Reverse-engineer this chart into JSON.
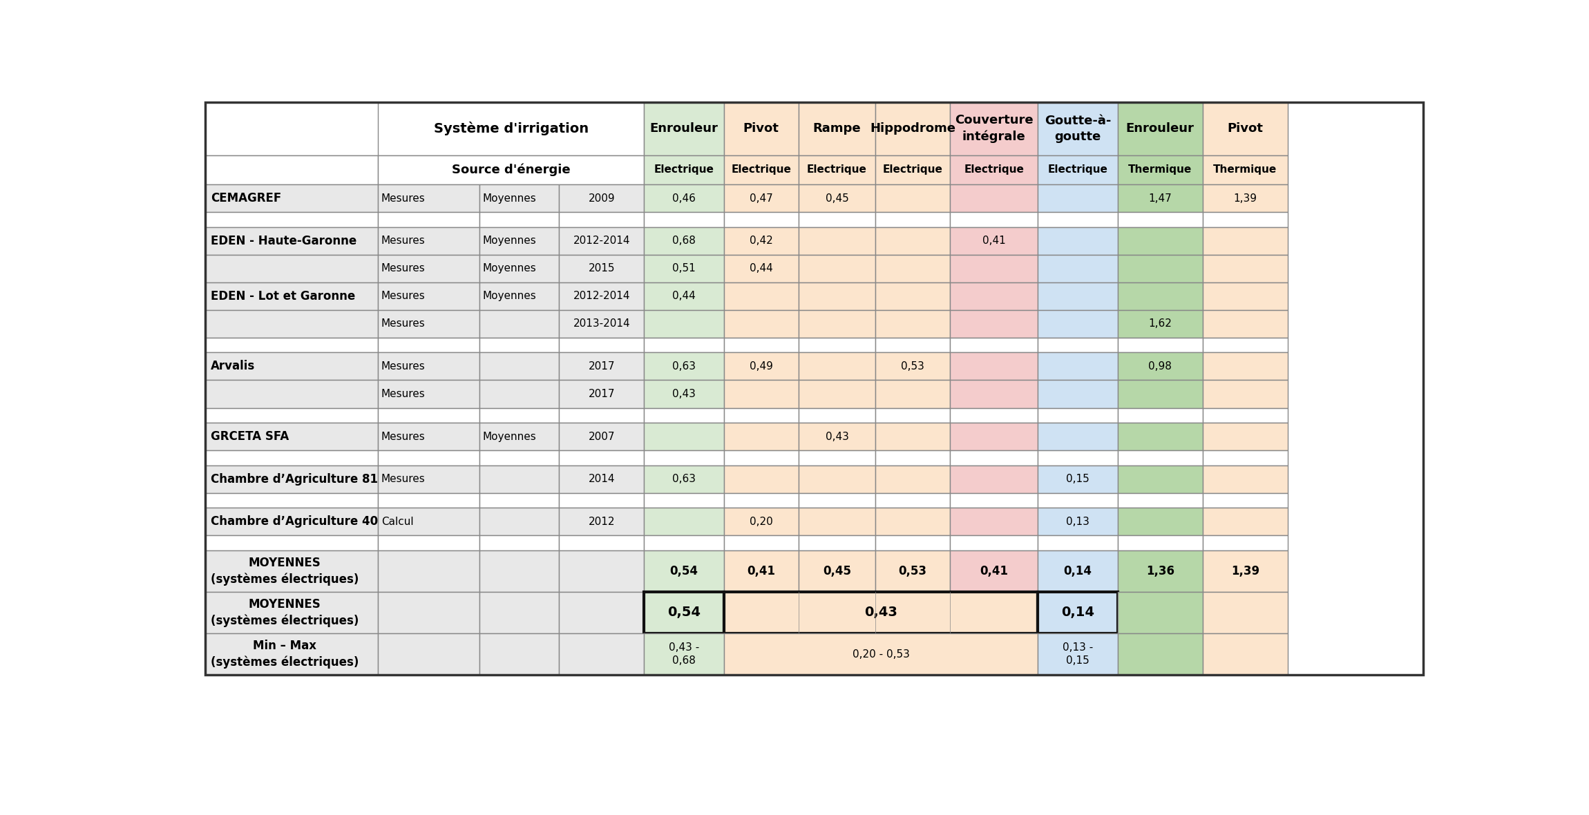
{
  "rows": [
    {
      "source": "CEMAGREF",
      "type": "Mesures",
      "subtype": "Moyennes",
      "year": "2009",
      "enr_e": "0,46",
      "piv_e": "0,47",
      "ram_e": "0,45",
      "hip_e": "",
      "couv_e": "",
      "gtt_e": "",
      "enr_t": "1,47",
      "piv_t": "1,39",
      "empty": false,
      "bold_src": true
    },
    {
      "source": "",
      "type": "",
      "subtype": "",
      "year": "",
      "enr_e": "",
      "piv_e": "",
      "ram_e": "",
      "hip_e": "",
      "couv_e": "",
      "gtt_e": "",
      "enr_t": "",
      "piv_t": "",
      "empty": true,
      "bold_src": false
    },
    {
      "source": "EDEN - Haute-Garonne",
      "type": "Mesures",
      "subtype": "Moyennes",
      "year": "2012-2014",
      "enr_e": "0,68",
      "piv_e": "0,42",
      "ram_e": "",
      "hip_e": "",
      "couv_e": "0,41",
      "gtt_e": "",
      "enr_t": "",
      "piv_t": "",
      "empty": false,
      "bold_src": true
    },
    {
      "source": "",
      "type": "Mesures",
      "subtype": "Moyennes",
      "year": "2015",
      "enr_e": "0,51",
      "piv_e": "0,44",
      "ram_e": "",
      "hip_e": "",
      "couv_e": "",
      "gtt_e": "",
      "enr_t": "",
      "piv_t": "",
      "empty": false,
      "bold_src": false
    },
    {
      "source": "EDEN - Lot et Garonne",
      "type": "Mesures",
      "subtype": "Moyennes",
      "year": "2012-2014",
      "enr_e": "0,44",
      "piv_e": "",
      "ram_e": "",
      "hip_e": "",
      "couv_e": "",
      "gtt_e": "",
      "enr_t": "",
      "piv_t": "",
      "empty": false,
      "bold_src": true
    },
    {
      "source": "",
      "type": "Mesures",
      "subtype": "",
      "year": "2013-2014",
      "enr_e": "",
      "piv_e": "",
      "ram_e": "",
      "hip_e": "",
      "couv_e": "",
      "gtt_e": "",
      "enr_t": "1,62",
      "piv_t": "",
      "empty": false,
      "bold_src": false
    },
    {
      "source": "",
      "type": "",
      "subtype": "",
      "year": "",
      "enr_e": "",
      "piv_e": "",
      "ram_e": "",
      "hip_e": "",
      "couv_e": "",
      "gtt_e": "",
      "enr_t": "",
      "piv_t": "",
      "empty": true,
      "bold_src": false
    },
    {
      "source": "Arvalis",
      "type": "Mesures",
      "subtype": "",
      "year": "2017",
      "enr_e": "0,63",
      "piv_e": "0,49",
      "ram_e": "",
      "hip_e": "0,53",
      "couv_e": "",
      "gtt_e": "",
      "enr_t": "0,98",
      "piv_t": "",
      "empty": false,
      "bold_src": true
    },
    {
      "source": "",
      "type": "Mesures",
      "subtype": "",
      "year": "2017",
      "enr_e": "0,43",
      "piv_e": "",
      "ram_e": "",
      "hip_e": "",
      "couv_e": "",
      "gtt_e": "",
      "enr_t": "",
      "piv_t": "",
      "empty": false,
      "bold_src": false
    },
    {
      "source": "",
      "type": "",
      "subtype": "",
      "year": "",
      "enr_e": "",
      "piv_e": "",
      "ram_e": "",
      "hip_e": "",
      "couv_e": "",
      "gtt_e": "",
      "enr_t": "",
      "piv_t": "",
      "empty": true,
      "bold_src": false
    },
    {
      "source": "GRCETA SFA",
      "type": "Mesures",
      "subtype": "Moyennes",
      "year": "2007",
      "enr_e": "",
      "piv_e": "",
      "ram_e": "0,43",
      "hip_e": "",
      "couv_e": "",
      "gtt_e": "",
      "enr_t": "",
      "piv_t": "",
      "empty": false,
      "bold_src": true
    },
    {
      "source": "",
      "type": "",
      "subtype": "",
      "year": "",
      "enr_e": "",
      "piv_e": "",
      "ram_e": "",
      "hip_e": "",
      "couv_e": "",
      "gtt_e": "",
      "enr_t": "",
      "piv_t": "",
      "empty": true,
      "bold_src": false
    },
    {
      "source": "Chambre d’Agriculture 81",
      "type": "Mesures",
      "subtype": "",
      "year": "2014",
      "enr_e": "0,63",
      "piv_e": "",
      "ram_e": "",
      "hip_e": "",
      "couv_e": "",
      "gtt_e": "0,15",
      "enr_t": "",
      "piv_t": "",
      "empty": false,
      "bold_src": true
    },
    {
      "source": "",
      "type": "",
      "subtype": "",
      "year": "",
      "enr_e": "",
      "piv_e": "",
      "ram_e": "",
      "hip_e": "",
      "couv_e": "",
      "gtt_e": "",
      "enr_t": "",
      "piv_t": "",
      "empty": true,
      "bold_src": false
    },
    {
      "source": "Chambre d’Agriculture 40",
      "type": "Calcul",
      "subtype": "",
      "year": "2012",
      "enr_e": "",
      "piv_e": "0,20",
      "ram_e": "",
      "hip_e": "",
      "couv_e": "",
      "gtt_e": "0,13",
      "enr_t": "",
      "piv_t": "",
      "empty": false,
      "bold_src": true
    },
    {
      "source": "",
      "type": "",
      "subtype": "",
      "year": "",
      "enr_e": "",
      "piv_e": "",
      "ram_e": "",
      "hip_e": "",
      "couv_e": "",
      "gtt_e": "",
      "enr_t": "",
      "piv_t": "",
      "empty": true,
      "bold_src": false
    },
    {
      "source": "MOYENNES\n(systèmes électriques)",
      "type": "",
      "subtype": "",
      "year": "",
      "enr_e": "0,54",
      "piv_e": "0,41",
      "ram_e": "0,45",
      "hip_e": "0,53",
      "couv_e": "0,41",
      "gtt_e": "0,14",
      "enr_t": "1,36",
      "piv_t": "1,39",
      "empty": false,
      "bold_src": true,
      "is_moyennes1": true
    },
    {
      "source": "MOYENNES\n(systèmes électriques)",
      "type": "",
      "subtype": "",
      "year": "",
      "enr_e": "0,54",
      "piv_e": "",
      "ram_e": "0,43",
      "hip_e": "",
      "couv_e": "",
      "gtt_e": "0,14",
      "enr_t": "",
      "piv_t": "",
      "empty": false,
      "bold_src": true,
      "is_moyennes2": true
    },
    {
      "source": "Min – Max\n(systèmes électriques)",
      "type": "",
      "subtype": "",
      "year": "",
      "enr_e": "0,43 -\n0,68",
      "piv_e": "",
      "ram_e": "0,20 - 0,53",
      "hip_e": "",
      "couv_e": "",
      "gtt_e": "0,13 -\n0,15",
      "enr_t": "",
      "piv_t": "",
      "empty": false,
      "bold_src": true,
      "is_minmax": true
    }
  ],
  "col_data_labels": [
    "Enrouleur",
    "Pivot",
    "Rampe",
    "Hippodrome",
    "Couverture\nintégrale",
    "Goutte-à-\ngoutte",
    "Enrouleur",
    "Pivot"
  ],
  "col_data_types": [
    "Electrique",
    "Electrique",
    "Electrique",
    "Electrique",
    "Electrique",
    "Electrique",
    "Thermique",
    "Thermique"
  ],
  "col_bg": [
    "#D9EAD3",
    "#FCE5CD",
    "#FCE5CD",
    "#FCE5CD",
    "#F4CCCC",
    "#CFE2F3",
    "#B6D7A8",
    "#FCE5CD"
  ],
  "row_bg_normal": "#E8E8E8",
  "row_bg_empty": "#FFFFFF",
  "header_bg": "#FFFFFF",
  "border_thin": "#888888",
  "border_thick": "#111111",
  "text_color": "#000000"
}
